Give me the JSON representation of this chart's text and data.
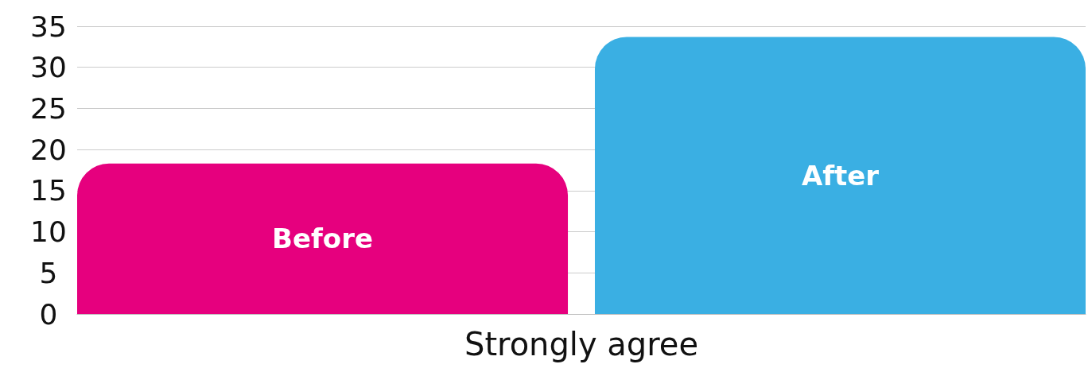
{
  "chart_data": {
    "type": "bar",
    "categories": [
      "Strongly agree"
    ],
    "series": [
      {
        "name": "Before",
        "color": "#e6007e",
        "values": [
          18.3
        ]
      },
      {
        "name": "After",
        "color": "#3aafe3",
        "values": [
          33.7
        ]
      }
    ],
    "ylim": [
      0,
      35
    ],
    "yticks": [
      0,
      5,
      10,
      15,
      20,
      25,
      30,
      35
    ],
    "grid": "y",
    "legend": false
  }
}
